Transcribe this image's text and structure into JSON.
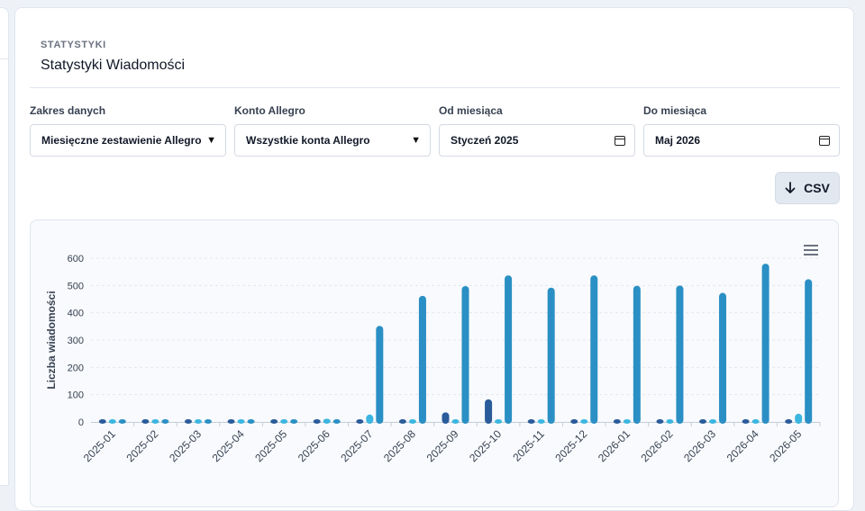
{
  "header": {
    "eyebrow": "STATYSTYKI",
    "title": "Statystyki Wiadomości"
  },
  "filters": {
    "range": {
      "label": "Zakres danych",
      "value": "Miesięczne zestawienie Allegro"
    },
    "account": {
      "label": "Konto Allegro",
      "value": "Wszystkie konta Allegro"
    },
    "from": {
      "label": "Od miesiąca",
      "value": "Styczeń 2025"
    },
    "to": {
      "label": "Do miesiąca",
      "value": "Maj 2026"
    }
  },
  "actions": {
    "csv_label": "CSV",
    "menu_icon": "hamburger-menu-icon",
    "download_icon": "arrow-down-icon"
  },
  "colors": {
    "series1": "#2a5b9a",
    "series2": "#3cb6e0",
    "series3": "#2a8fc4",
    "grid": "#e3e8ef"
  },
  "chart_data": {
    "type": "bar",
    "ylabel": "Liczba wiadomości",
    "xlabel": "",
    "ylim": [
      0,
      600
    ],
    "yticks": [
      0,
      100,
      200,
      300,
      400,
      500,
      600
    ],
    "grid": true,
    "legend": "none",
    "categories": [
      "2025-01",
      "2025-02",
      "2025-03",
      "2025-04",
      "2025-05",
      "2025-06",
      "2025-07",
      "2025-08",
      "2025-09",
      "2025-10",
      "2025-11",
      "2025-12",
      "2026-01",
      "2026-02",
      "2026-03",
      "2026-04",
      "2026-05"
    ],
    "series": [
      {
        "values": [
          0,
          0,
          0,
          0,
          0,
          8,
          1,
          0,
          35,
          83,
          10,
          0,
          3,
          0,
          0,
          0,
          0
        ]
      },
      {
        "values": [
          8,
          0,
          10,
          2,
          0,
          12,
          27,
          3,
          5,
          6,
          4,
          2,
          0,
          6,
          6,
          10,
          30
        ]
      },
      {
        "values": [
          0,
          0,
          0,
          0,
          0,
          0,
          352,
          462,
          498,
          537,
          492,
          537,
          499,
          500,
          473,
          580,
          523
        ]
      }
    ]
  }
}
